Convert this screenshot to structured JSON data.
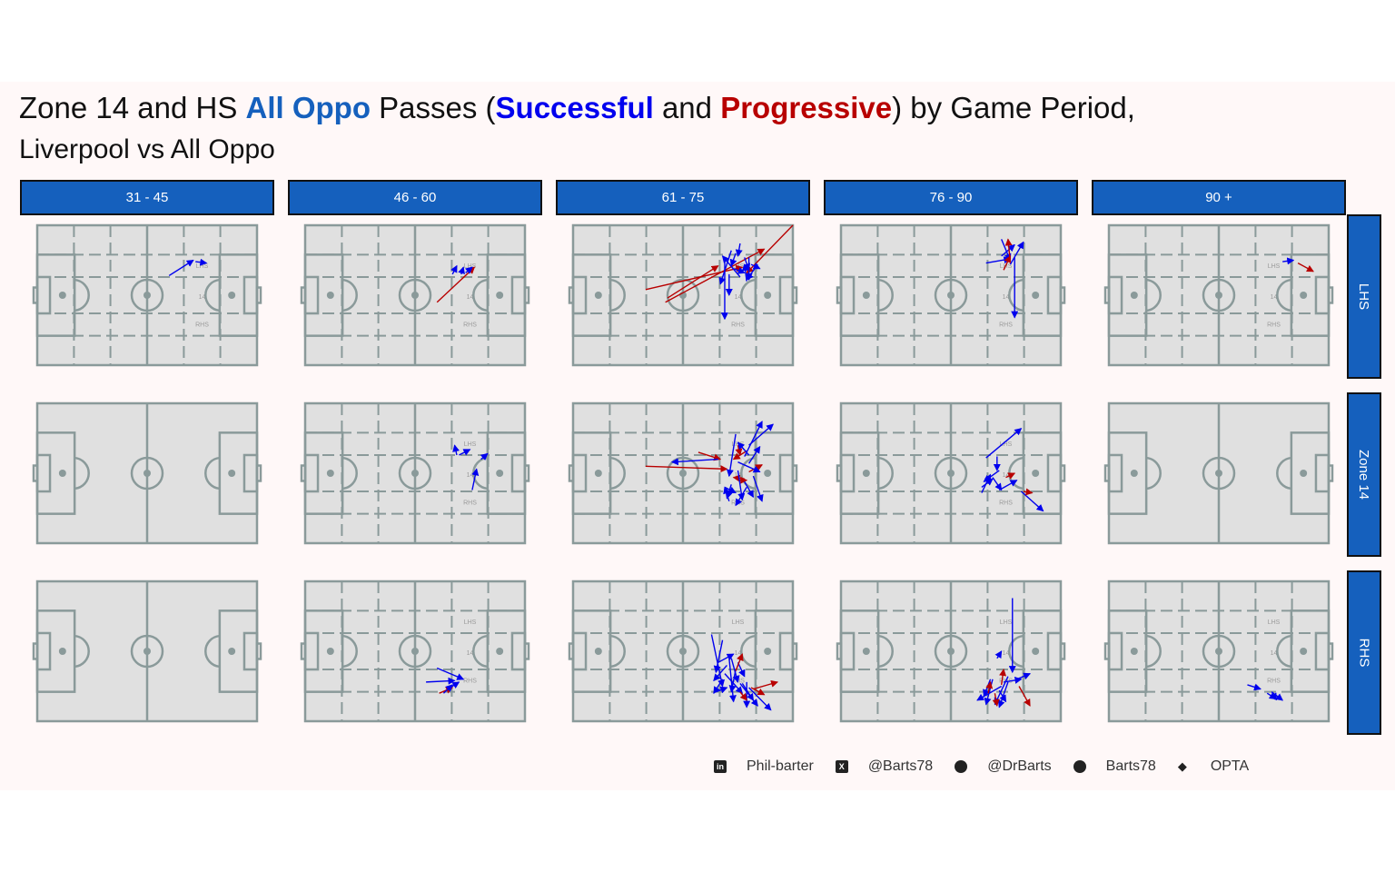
{
  "title": {
    "part1": "Zone 14 and HS ",
    "accent1": "All Oppo",
    "part2": " Passes (",
    "accent2": "Successful",
    "part3": " and ",
    "accent3": "Progressive",
    "part4": ") by Game Period,",
    "line2": "Liverpool vs All Oppo"
  },
  "colors": {
    "strip": "#1560bd",
    "successful": "#0000ee",
    "progressive": "#b80000",
    "pitch_fill": "#e0e0e0",
    "pitch_line": "#8a9a9a",
    "panel_bg": "#fff8f8"
  },
  "pitch_labels": {
    "lhs": "LHS",
    "zone": "14",
    "rhs": "RHS"
  },
  "footer": [
    {
      "icon": "linkedin-icon",
      "text": "Phil-barter"
    },
    {
      "icon": "x-twitter-icon",
      "text": "@Barts78"
    },
    {
      "icon": "mastodon-icon",
      "text": "@DrBarts"
    },
    {
      "icon": "github-icon",
      "text": "Barts78"
    },
    {
      "icon": "dropbox-icon",
      "text": "OPTA"
    }
  ],
  "chart_data": {
    "type": "scatter",
    "x_range": [
      0,
      100
    ],
    "y_range": [
      0,
      100
    ],
    "columns": [
      "31 - 45",
      "46 - 60",
      "61 - 75",
      "76 - 90",
      "90 +"
    ],
    "rows": [
      "LHS",
      "Zone 14",
      "RHS"
    ],
    "legend": [
      {
        "name": "Successful",
        "color": "#0000ee"
      },
      {
        "name": "Progressive",
        "color": "#b80000"
      }
    ],
    "panels": [
      {
        "col": 0,
        "row": 0,
        "zones": true,
        "passes": [
          {
            "x1": 60,
            "y1": 36,
            "x2": 71,
            "y2": 25,
            "type": "successful"
          },
          {
            "x1": 72,
            "y1": 26,
            "x2": 77,
            "y2": 27,
            "type": "successful"
          }
        ]
      },
      {
        "col": 1,
        "row": 0,
        "zones": true,
        "passes": [
          {
            "x1": 60,
            "y1": 55,
            "x2": 77,
            "y2": 30,
            "type": "progressive"
          },
          {
            "x1": 67,
            "y1": 35,
            "x2": 69,
            "y2": 29,
            "type": "successful"
          },
          {
            "x1": 71,
            "y1": 35,
            "x2": 72,
            "y2": 30,
            "type": "successful"
          },
          {
            "x1": 73,
            "y1": 34,
            "x2": 76,
            "y2": 30,
            "type": "successful"
          }
        ]
      },
      {
        "col": 2,
        "row": 0,
        "zones": true,
        "passes": [
          {
            "x1": 33,
            "y1": 46,
            "x2": 77,
            "y2": 30,
            "type": "progressive"
          },
          {
            "x1": 42,
            "y1": 55,
            "x2": 87,
            "y2": 17,
            "type": "progressive"
          },
          {
            "x1": 100,
            "y1": 0,
            "x2": 79,
            "y2": 34,
            "type": "progressive"
          },
          {
            "x1": 43,
            "y1": 52,
            "x2": 66,
            "y2": 29,
            "type": "progressive"
          },
          {
            "x1": 76,
            "y1": 13,
            "x2": 75,
            "y2": 22,
            "type": "successful"
          },
          {
            "x1": 72,
            "y1": 18,
            "x2": 67,
            "y2": 42,
            "type": "successful"
          },
          {
            "x1": 69,
            "y1": 26,
            "x2": 69,
            "y2": 67,
            "type": "successful"
          },
          {
            "x1": 76,
            "y1": 37,
            "x2": 68,
            "y2": 22,
            "type": "successful"
          },
          {
            "x1": 78,
            "y1": 23,
            "x2": 80,
            "y2": 32,
            "type": "successful"
          },
          {
            "x1": 81,
            "y1": 28,
            "x2": 85,
            "y2": 31,
            "type": "successful"
          },
          {
            "x1": 73,
            "y1": 31,
            "x2": 78,
            "y2": 34,
            "type": "successful"
          },
          {
            "x1": 80,
            "y1": 23,
            "x2": 80,
            "y2": 39,
            "type": "successful"
          },
          {
            "x1": 74,
            "y1": 20,
            "x2": 72,
            "y2": 29,
            "type": "successful"
          },
          {
            "x1": 79,
            "y1": 40,
            "x2": 78,
            "y2": 28,
            "type": "successful"
          },
          {
            "x1": 71,
            "y1": 35,
            "x2": 71,
            "y2": 50,
            "type": "successful"
          },
          {
            "x1": 84,
            "y1": 28,
            "x2": 79,
            "y2": 39,
            "type": "successful"
          }
        ]
      },
      {
        "col": 3,
        "row": 0,
        "zones": true,
        "passes": [
          {
            "x1": 66,
            "y1": 27,
            "x2": 77,
            "y2": 24,
            "type": "successful"
          },
          {
            "x1": 73,
            "y1": 10,
            "x2": 77,
            "y2": 25,
            "type": "successful"
          },
          {
            "x1": 77,
            "y1": 28,
            "x2": 83,
            "y2": 12,
            "type": "successful"
          },
          {
            "x1": 73,
            "y1": 22,
            "x2": 79,
            "y2": 14,
            "type": "successful"
          },
          {
            "x1": 79,
            "y1": 23,
            "x2": 79,
            "y2": 66,
            "type": "successful"
          },
          {
            "x1": 74,
            "y1": 32,
            "x2": 77,
            "y2": 22,
            "type": "progressive"
          },
          {
            "x1": 77,
            "y1": 26,
            "x2": 76,
            "y2": 10,
            "type": "progressive"
          }
        ]
      },
      {
        "col": 4,
        "row": 0,
        "zones": true,
        "passes": [
          {
            "x1": 79,
            "y1": 26,
            "x2": 84,
            "y2": 25,
            "type": "successful"
          },
          {
            "x1": 86,
            "y1": 27,
            "x2": 93,
            "y2": 33,
            "type": "progressive"
          }
        ]
      },
      {
        "col": 0,
        "row": 1,
        "zones": false,
        "passes": []
      },
      {
        "col": 1,
        "row": 1,
        "zones": true,
        "passes": [
          {
            "x1": 69,
            "y1": 37,
            "x2": 68,
            "y2": 30,
            "type": "successful"
          },
          {
            "x1": 70,
            "y1": 37,
            "x2": 75,
            "y2": 33,
            "type": "successful"
          },
          {
            "x1": 80,
            "y1": 40,
            "x2": 83,
            "y2": 36,
            "type": "successful"
          },
          {
            "x1": 76,
            "y1": 62,
            "x2": 78,
            "y2": 47,
            "type": "successful"
          }
        ]
      },
      {
        "col": 2,
        "row": 1,
        "zones": true,
        "passes": [
          {
            "x1": 33,
            "y1": 45,
            "x2": 70,
            "y2": 47,
            "type": "progressive"
          },
          {
            "x1": 57,
            "y1": 35,
            "x2": 67,
            "y2": 40,
            "type": "progressive"
          },
          {
            "x1": 79,
            "y1": 34,
            "x2": 73,
            "y2": 40,
            "type": "progressive"
          },
          {
            "x1": 75,
            "y1": 55,
            "x2": 79,
            "y2": 55,
            "type": "progressive"
          },
          {
            "x1": 78,
            "y1": 54,
            "x2": 73,
            "y2": 53,
            "type": "progressive"
          },
          {
            "x1": 75,
            "y1": 30,
            "x2": 76,
            "y2": 37,
            "type": "progressive"
          },
          {
            "x1": 80,
            "y1": 49,
            "x2": 86,
            "y2": 44,
            "type": "progressive"
          },
          {
            "x1": 66,
            "y1": 40,
            "x2": 45,
            "y2": 42,
            "type": "successful"
          },
          {
            "x1": 74,
            "y1": 22,
            "x2": 71,
            "y2": 52,
            "type": "successful"
          },
          {
            "x1": 80,
            "y1": 37,
            "x2": 75,
            "y2": 28,
            "type": "successful"
          },
          {
            "x1": 78,
            "y1": 38,
            "x2": 86,
            "y2": 13,
            "type": "successful"
          },
          {
            "x1": 80,
            "y1": 30,
            "x2": 91,
            "y2": 15,
            "type": "successful"
          },
          {
            "x1": 75,
            "y1": 48,
            "x2": 77,
            "y2": 69,
            "type": "successful"
          },
          {
            "x1": 72,
            "y1": 58,
            "x2": 70,
            "y2": 68,
            "type": "successful"
          },
          {
            "x1": 79,
            "y1": 60,
            "x2": 74,
            "y2": 73,
            "type": "successful"
          },
          {
            "x1": 82,
            "y1": 52,
            "x2": 86,
            "y2": 70,
            "type": "successful"
          },
          {
            "x1": 75,
            "y1": 42,
            "x2": 85,
            "y2": 49,
            "type": "successful"
          },
          {
            "x1": 69,
            "y1": 60,
            "x2": 74,
            "y2": 64,
            "type": "successful"
          },
          {
            "x1": 78,
            "y1": 56,
            "x2": 82,
            "y2": 67,
            "type": "successful"
          },
          {
            "x1": 71,
            "y1": 70,
            "x2": 69,
            "y2": 60,
            "type": "successful"
          },
          {
            "x1": 80,
            "y1": 43,
            "x2": 85,
            "y2": 31,
            "type": "successful"
          }
        ]
      },
      {
        "col": 3,
        "row": 1,
        "zones": true,
        "passes": [
          {
            "x1": 66,
            "y1": 39,
            "x2": 82,
            "y2": 18,
            "type": "successful"
          },
          {
            "x1": 72,
            "y1": 48,
            "x2": 65,
            "y2": 56,
            "type": "successful"
          },
          {
            "x1": 69,
            "y1": 53,
            "x2": 73,
            "y2": 62,
            "type": "successful"
          },
          {
            "x1": 64,
            "y1": 64,
            "x2": 68,
            "y2": 51,
            "type": "successful"
          },
          {
            "x1": 72,
            "y1": 62,
            "x2": 80,
            "y2": 55,
            "type": "successful"
          },
          {
            "x1": 71,
            "y1": 38,
            "x2": 71,
            "y2": 48,
            "type": "successful"
          },
          {
            "x1": 82,
            "y1": 63,
            "x2": 92,
            "y2": 77,
            "type": "successful"
          },
          {
            "x1": 64,
            "y1": 60,
            "x2": 69,
            "y2": 54,
            "type": "successful"
          },
          {
            "x1": 83,
            "y1": 63,
            "x2": 87,
            "y2": 64,
            "type": "progressive"
          },
          {
            "x1": 75,
            "y1": 53,
            "x2": 79,
            "y2": 50,
            "type": "progressive"
          }
        ]
      },
      {
        "col": 4,
        "row": 1,
        "zones": false,
        "passes": []
      },
      {
        "col": 0,
        "row": 2,
        "zones": false,
        "passes": []
      },
      {
        "col": 1,
        "row": 2,
        "zones": true,
        "passes": [
          {
            "x1": 55,
            "y1": 72,
            "x2": 68,
            "y2": 71,
            "type": "successful"
          },
          {
            "x1": 60,
            "y1": 62,
            "x2": 72,
            "y2": 70,
            "type": "successful"
          },
          {
            "x1": 65,
            "y1": 77,
            "x2": 70,
            "y2": 72,
            "type": "successful"
          },
          {
            "x1": 61,
            "y1": 80,
            "x2": 67,
            "y2": 76,
            "type": "progressive"
          },
          {
            "x1": 63,
            "y1": 80,
            "x2": 67,
            "y2": 74,
            "type": "successful"
          }
        ]
      },
      {
        "col": 2,
        "row": 2,
        "zones": true,
        "passes": [
          {
            "x1": 63,
            "y1": 38,
            "x2": 68,
            "y2": 75,
            "type": "successful"
          },
          {
            "x1": 68,
            "y1": 42,
            "x2": 65,
            "y2": 65,
            "type": "successful"
          },
          {
            "x1": 72,
            "y1": 55,
            "x2": 75,
            "y2": 72,
            "type": "successful"
          },
          {
            "x1": 70,
            "y1": 60,
            "x2": 64,
            "y2": 71,
            "type": "successful"
          },
          {
            "x1": 75,
            "y1": 58,
            "x2": 78,
            "y2": 68,
            "type": "successful"
          },
          {
            "x1": 77,
            "y1": 73,
            "x2": 82,
            "y2": 85,
            "type": "successful"
          },
          {
            "x1": 80,
            "y1": 76,
            "x2": 90,
            "y2": 92,
            "type": "successful"
          },
          {
            "x1": 69,
            "y1": 66,
            "x2": 77,
            "y2": 80,
            "type": "successful"
          },
          {
            "x1": 65,
            "y1": 79,
            "x2": 70,
            "y2": 76,
            "type": "successful"
          },
          {
            "x1": 71,
            "y1": 55,
            "x2": 73,
            "y2": 86,
            "type": "successful"
          },
          {
            "x1": 68,
            "y1": 70,
            "x2": 64,
            "y2": 80,
            "type": "successful"
          },
          {
            "x1": 79,
            "y1": 72,
            "x2": 79,
            "y2": 90,
            "type": "successful"
          },
          {
            "x1": 76,
            "y1": 73,
            "x2": 84,
            "y2": 89,
            "type": "successful"
          },
          {
            "x1": 66,
            "y1": 58,
            "x2": 73,
            "y2": 52,
            "type": "successful"
          },
          {
            "x1": 74,
            "y1": 63,
            "x2": 72,
            "y2": 79,
            "type": "successful"
          },
          {
            "x1": 82,
            "y1": 77,
            "x2": 93,
            "y2": 72,
            "type": "progressive"
          },
          {
            "x1": 76,
            "y1": 79,
            "x2": 79,
            "y2": 85,
            "type": "progressive"
          },
          {
            "x1": 74,
            "y1": 64,
            "x2": 77,
            "y2": 52,
            "type": "progressive"
          },
          {
            "x1": 81,
            "y1": 76,
            "x2": 87,
            "y2": 81,
            "type": "progressive"
          }
        ]
      },
      {
        "col": 3,
        "row": 2,
        "zones": true,
        "passes": [
          {
            "x1": 78,
            "y1": 12,
            "x2": 78,
            "y2": 65,
            "type": "successful"
          },
          {
            "x1": 73,
            "y1": 75,
            "x2": 62,
            "y2": 85,
            "type": "successful"
          },
          {
            "x1": 68,
            "y1": 70,
            "x2": 65,
            "y2": 82,
            "type": "successful"
          },
          {
            "x1": 76,
            "y1": 68,
            "x2": 70,
            "y2": 88,
            "type": "successful"
          },
          {
            "x1": 72,
            "y1": 78,
            "x2": 75,
            "y2": 86,
            "type": "successful"
          },
          {
            "x1": 69,
            "y1": 70,
            "x2": 66,
            "y2": 88,
            "type": "successful"
          },
          {
            "x1": 71,
            "y1": 55,
            "x2": 73,
            "y2": 50,
            "type": "successful"
          },
          {
            "x1": 80,
            "y1": 70,
            "x2": 86,
            "y2": 66,
            "type": "successful"
          },
          {
            "x1": 76,
            "y1": 72,
            "x2": 72,
            "y2": 90,
            "type": "successful"
          },
          {
            "x1": 74,
            "y1": 72,
            "x2": 82,
            "y2": 70,
            "type": "successful"
          },
          {
            "x1": 73,
            "y1": 74,
            "x2": 74,
            "y2": 63,
            "type": "progressive"
          },
          {
            "x1": 81,
            "y1": 75,
            "x2": 86,
            "y2": 89,
            "type": "progressive"
          },
          {
            "x1": 67,
            "y1": 80,
            "x2": 68,
            "y2": 72,
            "type": "progressive"
          },
          {
            "x1": 70,
            "y1": 80,
            "x2": 71,
            "y2": 89,
            "type": "progressive"
          }
        ]
      },
      {
        "col": 4,
        "row": 2,
        "zones": true,
        "passes": [
          {
            "x1": 63,
            "y1": 74,
            "x2": 69,
            "y2": 77,
            "type": "successful"
          },
          {
            "x1": 72,
            "y1": 80,
            "x2": 76,
            "y2": 84,
            "type": "successful"
          },
          {
            "x1": 74,
            "y1": 79,
            "x2": 79,
            "y2": 85,
            "type": "successful"
          },
          {
            "x1": 75,
            "y1": 84,
            "x2": 76,
            "y2": 80,
            "type": "successful"
          }
        ]
      }
    ]
  }
}
